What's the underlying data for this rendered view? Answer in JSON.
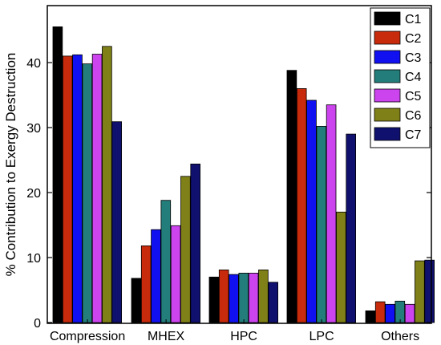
{
  "chart_data": {
    "type": "bar",
    "title": "",
    "xlabel": "",
    "ylabel": "% Contribution to Exergy Destruction",
    "ylim": [
      0,
      47
    ],
    "yticks": [
      0,
      10,
      20,
      30,
      40
    ],
    "grid": false,
    "legend_position": "top-right",
    "categories": [
      "Compression",
      "MHEX",
      "HPC",
      "LPC",
      "Others"
    ],
    "series": [
      {
        "name": "C1",
        "color": "#000000",
        "values": [
          45.5,
          6.8,
          7.0,
          38.8,
          1.8
        ]
      },
      {
        "name": "C2",
        "color": "#c82b0c",
        "values": [
          41.0,
          11.8,
          8.1,
          36.0,
          3.2
        ]
      },
      {
        "name": "C3",
        "color": "#1010f0",
        "values": [
          41.2,
          14.3,
          7.4,
          34.2,
          2.8
        ]
      },
      {
        "name": "C4",
        "color": "#237d7a",
        "values": [
          39.8,
          18.8,
          7.6,
          30.2,
          3.3
        ]
      },
      {
        "name": "C5",
        "color": "#cc44ee",
        "values": [
          41.3,
          14.9,
          7.6,
          33.5,
          2.8
        ]
      },
      {
        "name": "C6",
        "color": "#808018",
        "values": [
          42.5,
          22.5,
          8.1,
          17.0,
          9.5
        ]
      },
      {
        "name": "C7",
        "color": "#10106e",
        "values": [
          30.9,
          24.4,
          6.2,
          29.0,
          9.6
        ]
      }
    ]
  }
}
